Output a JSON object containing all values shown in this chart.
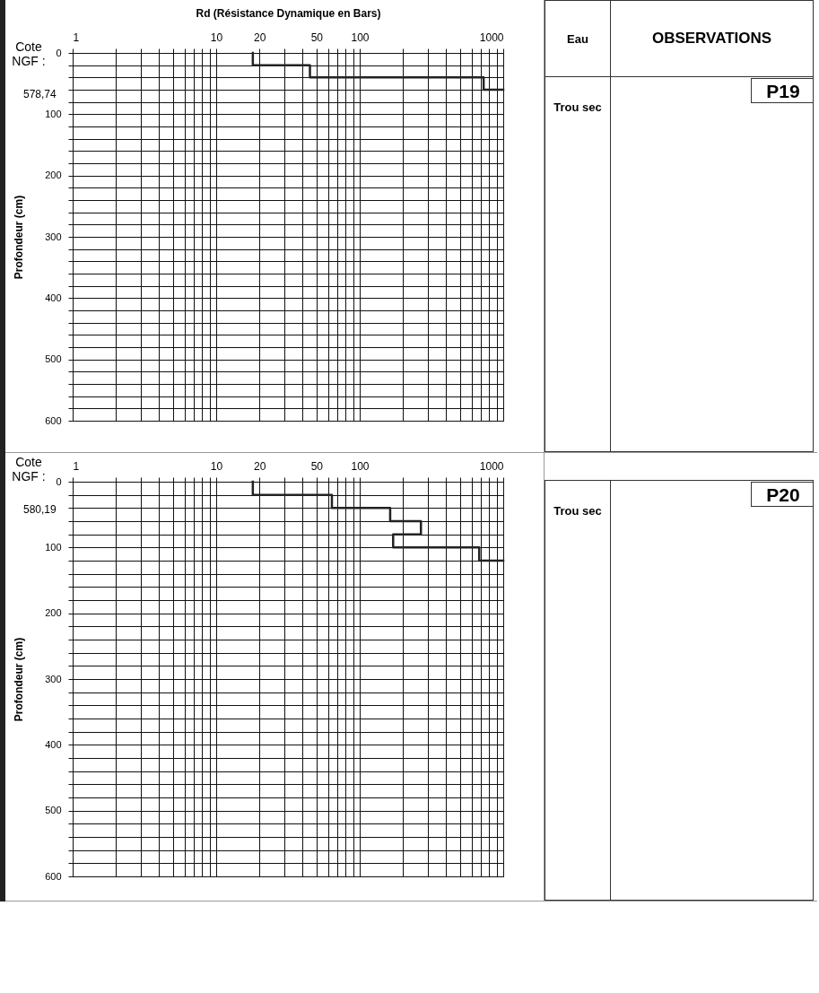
{
  "chart_data": [
    {
      "type": "line",
      "xlabel": "Rd (Résistance Dynamique en Bars)",
      "ylabel": "Profondeur (cm)",
      "log": "x",
      "grid": true,
      "xlim": [
        1,
        1000
      ],
      "ylim": [
        600,
        0
      ],
      "xticks": [
        1,
        {
          "value": 2,
          "label": null
        },
        {
          "value": 3,
          "label": null
        },
        {
          "value": 4,
          "label": null
        },
        {
          "value": 5,
          "label": null
        },
        {
          "value": 6,
          "label": null
        },
        {
          "value": 7,
          "label": null
        },
        {
          "value": 8,
          "label": null
        },
        {
          "value": 9,
          "label": null
        },
        10,
        20,
        {
          "value": 30,
          "label": null
        },
        {
          "value": 40,
          "label": null
        },
        50,
        {
          "value": 60,
          "label": null
        },
        {
          "value": 70,
          "label": null
        },
        {
          "value": 80,
          "label": null
        },
        {
          "value": 90,
          "label": null
        },
        100,
        {
          "value": 200,
          "label": null
        },
        {
          "value": 300,
          "label": null
        },
        {
          "value": 400,
          "label": null
        },
        {
          "value": 500,
          "label": null
        },
        {
          "value": 600,
          "label": null
        },
        {
          "value": 700,
          "label": null
        },
        {
          "value": 800,
          "label": null
        },
        {
          "value": 900,
          "label": null
        },
        1000
      ],
      "yticks": [
        0,
        {
          "value": 20,
          "label": null
        },
        {
          "value": 40,
          "label": null
        },
        {
          "value": 60,
          "label": null
        },
        {
          "value": 80,
          "label": null
        },
        100,
        {
          "value": 120,
          "label": null
        },
        {
          "value": 140,
          "label": null
        },
        {
          "value": 160,
          "label": null
        },
        {
          "value": 180,
          "label": null
        },
        200,
        {
          "value": 220,
          "label": null
        },
        {
          "value": 240,
          "label": null
        },
        {
          "value": 260,
          "label": null
        },
        {
          "value": 280,
          "label": null
        },
        300,
        {
          "value": 320,
          "label": null
        },
        {
          "value": 340,
          "label": null
        },
        {
          "value": 360,
          "label": null
        },
        {
          "value": 380,
          "label": null
        },
        400,
        {
          "value": 420,
          "label": null
        },
        {
          "value": 440,
          "label": null
        },
        {
          "value": 460,
          "label": null
        },
        {
          "value": 480,
          "label": null
        },
        500,
        {
          "value": 520,
          "label": null
        },
        {
          "value": 540,
          "label": null
        },
        {
          "value": 560,
          "label": null
        },
        {
          "value": 580,
          "label": null
        },
        600
      ],
      "series": [
        {
          "color": "#222222",
          "x": [
            18,
            18,
            45,
            45,
            730,
            730,
            1000
          ],
          "values": [
            0,
            20,
            20,
            40,
            40,
            60,
            60
          ]
        }
      ],
      "annotations": [
        "Cote NGF :",
        "578,74",
        "Eau",
        "OBSERVATIONS",
        "Trou sec",
        "P19"
      ]
    },
    {
      "type": "line",
      "ylabel": "Profondeur (cm)",
      "log": "x",
      "grid": true,
      "xlim": [
        1,
        1000
      ],
      "ylim": [
        600,
        0
      ],
      "xticks": [
        1,
        {
          "value": 2,
          "label": null
        },
        {
          "value": 3,
          "label": null
        },
        {
          "value": 4,
          "label": null
        },
        {
          "value": 5,
          "label": null
        },
        {
          "value": 6,
          "label": null
        },
        {
          "value": 7,
          "label": null
        },
        {
          "value": 8,
          "label": null
        },
        {
          "value": 9,
          "label": null
        },
        10,
        20,
        {
          "value": 30,
          "label": null
        },
        {
          "value": 40,
          "label": null
        },
        50,
        {
          "value": 60,
          "label": null
        },
        {
          "value": 70,
          "label": null
        },
        {
          "value": 80,
          "label": null
        },
        {
          "value": 90,
          "label": null
        },
        100,
        {
          "value": 200,
          "label": null
        },
        {
          "value": 300,
          "label": null
        },
        {
          "value": 400,
          "label": null
        },
        {
          "value": 500,
          "label": null
        },
        {
          "value": 600,
          "label": null
        },
        {
          "value": 700,
          "label": null
        },
        {
          "value": 800,
          "label": null
        },
        {
          "value": 900,
          "label": null
        },
        1000
      ],
      "yticks": [
        0,
        {
          "value": 20,
          "label": null
        },
        {
          "value": 40,
          "label": null
        },
        {
          "value": 60,
          "label": null
        },
        {
          "value": 80,
          "label": null
        },
        100,
        {
          "value": 120,
          "label": null
        },
        {
          "value": 140,
          "label": null
        },
        {
          "value": 160,
          "label": null
        },
        {
          "value": 180,
          "label": null
        },
        200,
        {
          "value": 220,
          "label": null
        },
        {
          "value": 240,
          "label": null
        },
        {
          "value": 260,
          "label": null
        },
        {
          "value": 280,
          "label": null
        },
        300,
        {
          "value": 320,
          "label": null
        },
        {
          "value": 340,
          "label": null
        },
        {
          "value": 360,
          "label": null
        },
        {
          "value": 380,
          "label": null
        },
        400,
        {
          "value": 420,
          "label": null
        },
        {
          "value": 440,
          "label": null
        },
        {
          "value": 460,
          "label": null
        },
        {
          "value": 480,
          "label": null
        },
        500,
        {
          "value": 520,
          "label": null
        },
        {
          "value": 540,
          "label": null
        },
        {
          "value": 560,
          "label": null
        },
        {
          "value": 580,
          "label": null
        },
        600
      ],
      "series": [
        {
          "color": "#222222",
          "x": [
            18,
            18,
            64,
            64,
            163,
            163,
            267,
            267,
            171,
            171,
            680,
            680,
            1000
          ],
          "values": [
            0,
            20,
            20,
            40,
            40,
            60,
            60,
            80,
            80,
            100,
            100,
            120,
            120
          ]
        }
      ],
      "annotations": [
        "Cote NGF :",
        "580,19",
        "Trou sec",
        "P20"
      ]
    }
  ]
}
